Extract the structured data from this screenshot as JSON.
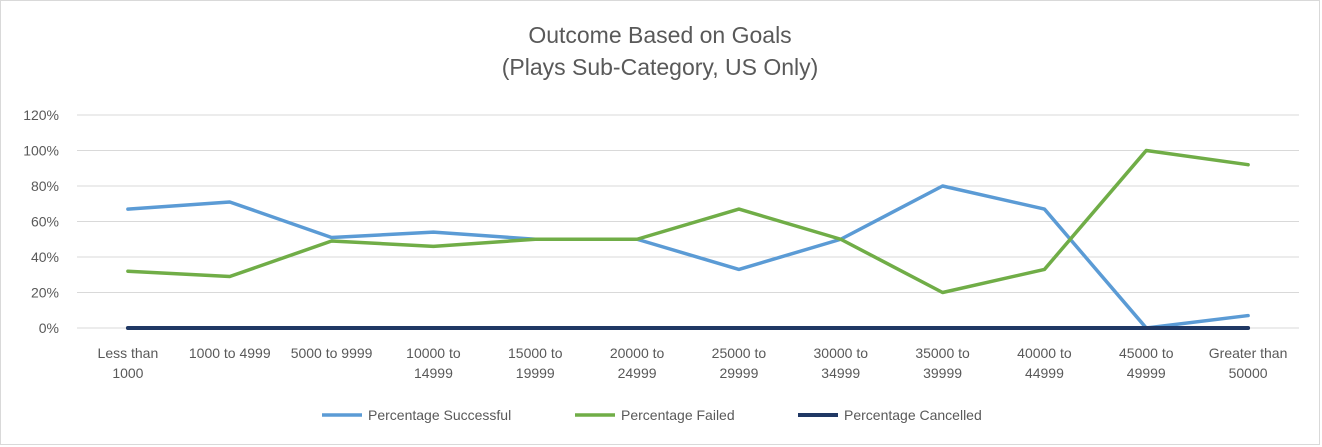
{
  "chart_data": {
    "type": "line",
    "title": "Outcome Based on Goals",
    "subtitle": "(Plays Sub-Category, US Only)",
    "xlabel": "",
    "ylabel": "",
    "ylim": [
      0,
      1.2
    ],
    "y_ticks": [
      "0%",
      "20%",
      "40%",
      "60%",
      "80%",
      "100%",
      "120%"
    ],
    "y_tick_values": [
      0,
      0.2,
      0.4,
      0.6,
      0.8,
      1.0,
      1.2
    ],
    "grid": true,
    "legend_position": "bottom",
    "categories": [
      [
        "Less than",
        "1000"
      ],
      [
        "1000 to 4999"
      ],
      [
        "5000 to 9999"
      ],
      [
        "10000 to",
        "14999"
      ],
      [
        "15000 to",
        "19999"
      ],
      [
        "20000 to",
        "24999"
      ],
      [
        "25000 to",
        "29999"
      ],
      [
        "30000 to",
        "34999"
      ],
      [
        "35000 to",
        "39999"
      ],
      [
        "40000 to",
        "44999"
      ],
      [
        "45000 to",
        "49999"
      ],
      [
        "Greater than",
        "50000"
      ]
    ],
    "series": [
      {
        "name": "Percentage Successful",
        "color": "#5B9BD5",
        "values": [
          0.67,
          0.71,
          0.51,
          0.54,
          0.5,
          0.5,
          0.33,
          0.5,
          0.8,
          0.67,
          0.0,
          0.07
        ]
      },
      {
        "name": "Percentage Failed",
        "color": "#70AD47",
        "values": [
          0.32,
          0.29,
          0.49,
          0.46,
          0.5,
          0.5,
          0.67,
          0.5,
          0.2,
          0.33,
          1.0,
          0.92
        ]
      },
      {
        "name": "Percentage Cancelled",
        "color": "#203864",
        "values": [
          0,
          0,
          0,
          0,
          0,
          0,
          0,
          0,
          0,
          0,
          0,
          0
        ]
      }
    ]
  }
}
